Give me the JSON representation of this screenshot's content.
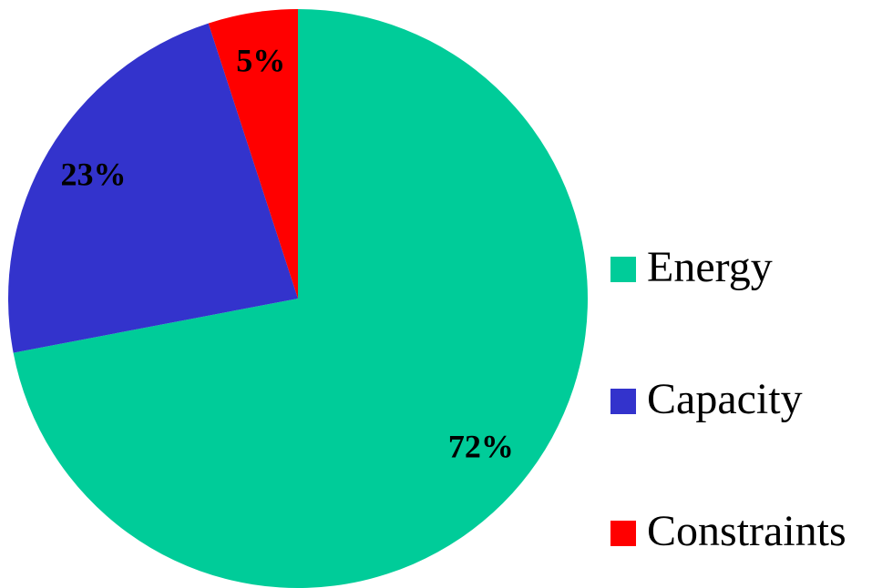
{
  "chart_data": {
    "type": "pie",
    "categories": [
      "Energy",
      "Capacity",
      "Constraints"
    ],
    "values": [
      72,
      23,
      5
    ],
    "value_labels": [
      "72%",
      "23%",
      "5%"
    ],
    "colors": [
      "#00cc99",
      "#3333cc",
      "#ff0000"
    ],
    "legend": "right"
  }
}
